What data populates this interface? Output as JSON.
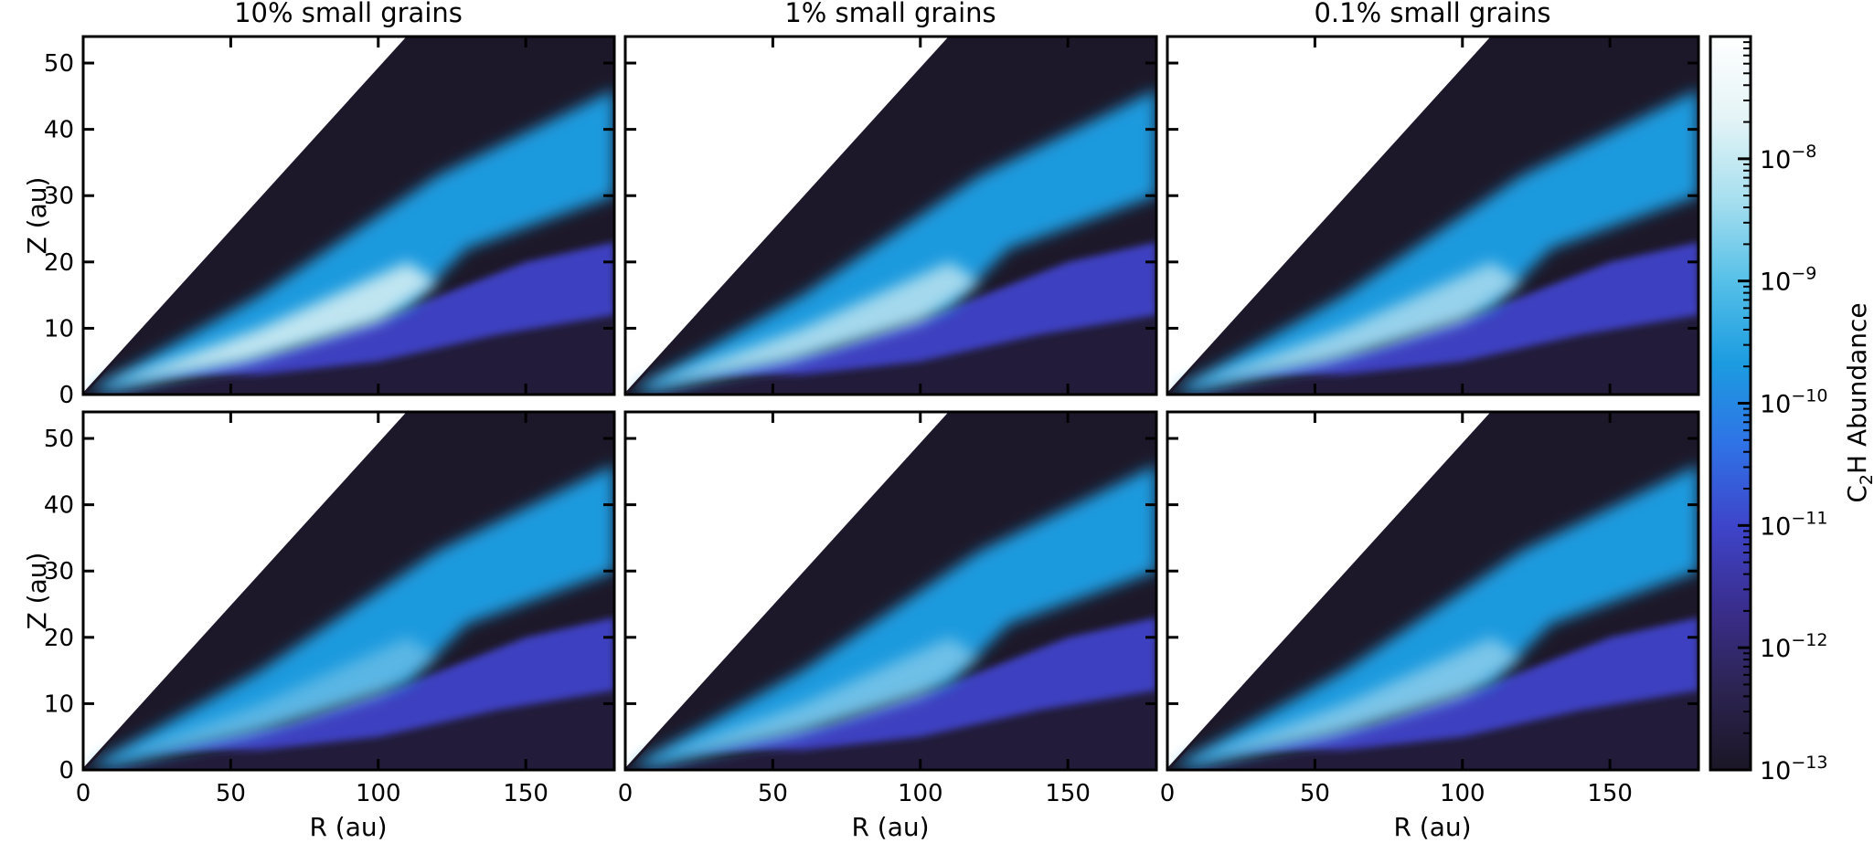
{
  "chart_data": {
    "type": "heatmap",
    "layout": "2 rows x 3 columns, shared colorbar",
    "columns": [
      "10% small grains",
      "1% small grains",
      "0.1% small grains"
    ],
    "xlabel": "R (au)",
    "ylabel": "Z (au)",
    "xlim": [
      0,
      180
    ],
    "ylim": [
      0,
      54
    ],
    "xticks": [
      0,
      50,
      100,
      150
    ],
    "yticks": [
      0,
      10,
      20,
      30,
      40,
      50
    ],
    "colorbar": {
      "label_main": "C",
      "label_sub": "2",
      "label_rest": "H Abundance",
      "scale": "log",
      "range": [
        1e-13,
        1e-07
      ],
      "ticks": [
        {
          "exp": -8,
          "base": "10",
          "sup": "−8"
        },
        {
          "exp": -9,
          "base": "10",
          "sup": "−9"
        },
        {
          "exp": -10,
          "base": "10",
          "sup": "−10"
        },
        {
          "exp": -11,
          "base": "10",
          "sup": "−11"
        },
        {
          "exp": -12,
          "base": "10",
          "sup": "−12"
        },
        {
          "exp": -13,
          "base": "10",
          "sup": "−13"
        }
      ],
      "colors": [
        "#1b1626",
        "#2c2452",
        "#3a2e8e",
        "#3e45cb",
        "#2f73e6",
        "#1c9ce0",
        "#56c0e8",
        "#a7dfef",
        "#e4f4f7",
        "#ffffff"
      ]
    },
    "disk_colors": {
      "void": "#ffffff",
      "surface": "#1d1829",
      "midplane": "#221c3a",
      "lower_layer": "#3c40c0",
      "warm_layer": "#1e9ade",
      "bright_core": "#cdebf2"
    },
    "panels": [
      {
        "row": 1,
        "col": 1,
        "max_log_abundance": -7.3
      },
      {
        "row": 1,
        "col": 2,
        "max_log_abundance": -7.5
      },
      {
        "row": 1,
        "col": 3,
        "max_log_abundance": -7.6
      },
      {
        "row": 2,
        "col": 1,
        "max_log_abundance": -8.2
      },
      {
        "row": 2,
        "col": 2,
        "max_log_abundance": -7.9
      },
      {
        "row": 2,
        "col": 3,
        "max_log_abundance": -7.8
      }
    ]
  }
}
